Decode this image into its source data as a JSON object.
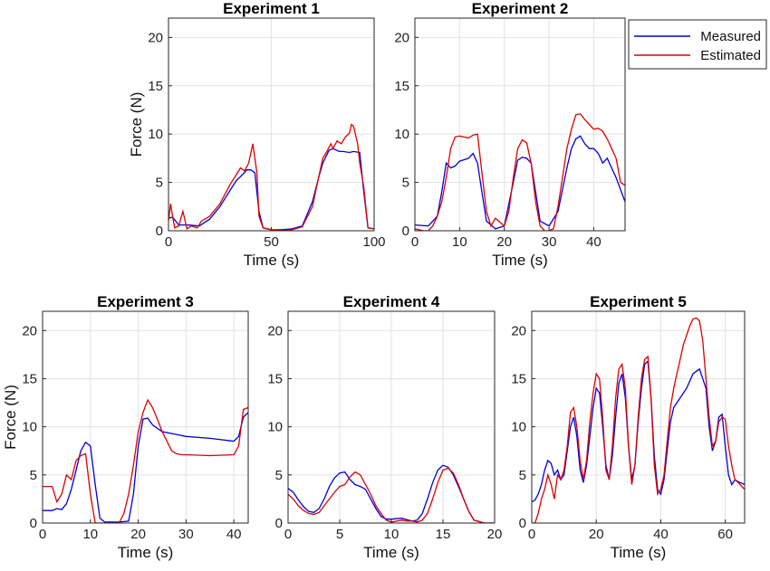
{
  "chart_data": [
    {
      "type": "line",
      "title": "Experiment 1",
      "xlabel": "Time (s)",
      "ylabel": "Force (N)",
      "xlim": [
        0,
        100
      ],
      "ylim": [
        0,
        22
      ],
      "xticks": [
        0,
        50,
        100
      ],
      "yticks": [
        0,
        5,
        10,
        15,
        20
      ],
      "grid": true,
      "series": [
        {
          "name": "Measured",
          "color": "#0000dd",
          "x": [
            0,
            2,
            5,
            10,
            15,
            20,
            25,
            30,
            33,
            36,
            38,
            40,
            42,
            44,
            46,
            50,
            55,
            60,
            65,
            70,
            73,
            75,
            78,
            80,
            83,
            85,
            88,
            90,
            93,
            95,
            97,
            100
          ],
          "y": [
            1.3,
            1.4,
            0.6,
            0.6,
            0.5,
            1.2,
            2.5,
            4.2,
            5.2,
            5.8,
            6.3,
            6.3,
            6.0,
            2.0,
            0.3,
            0.1,
            0.1,
            0.2,
            0.5,
            3.0,
            5.5,
            7.0,
            8.3,
            8.5,
            8.2,
            8.2,
            8.1,
            8.2,
            8.1,
            4.0,
            0.3,
            0.2
          ]
        },
        {
          "name": "Estimated",
          "color": "#dd0000",
          "x": [
            0,
            1,
            2,
            3,
            5,
            7,
            9,
            11,
            14,
            16,
            20,
            25,
            30,
            33,
            35,
            37,
            39,
            40,
            41,
            43,
            44,
            46,
            50,
            55,
            60,
            65,
            70,
            73,
            75,
            77,
            79,
            80,
            82,
            84,
            86,
            88,
            89,
            90,
            92,
            93,
            95,
            97,
            100
          ],
          "y": [
            1.0,
            2.8,
            1.5,
            0.3,
            0.5,
            2.0,
            0.2,
            0.5,
            0.3,
            1.0,
            1.5,
            2.8,
            4.8,
            5.8,
            6.5,
            6.2,
            7.0,
            8.0,
            9.0,
            6.0,
            1.5,
            0.3,
            0.1,
            0.0,
            0.1,
            0.4,
            2.5,
            5.5,
            7.5,
            8.2,
            9.0,
            8.5,
            9.3,
            9.0,
            9.7,
            10.1,
            11.0,
            10.8,
            9.0,
            7.0,
            4.5,
            0.3,
            0.2
          ]
        }
      ]
    },
    {
      "type": "line",
      "title": "Experiment 2",
      "xlabel": "Time (s)",
      "ylabel": "",
      "xlim": [
        0,
        47
      ],
      "ylim": [
        0,
        22
      ],
      "xticks": [
        0,
        10,
        20,
        30,
        40
      ],
      "yticks": [
        0,
        5,
        10,
        15,
        20
      ],
      "grid": true,
      "series": [
        {
          "name": "Measured",
          "color": "#0000dd",
          "x": [
            0,
            3,
            5,
            6,
            7,
            8,
            9,
            10,
            12,
            13,
            14,
            15,
            16,
            18,
            20,
            22,
            23,
            24,
            25,
            26,
            27,
            28,
            30,
            32,
            34,
            35,
            36,
            37,
            38,
            39,
            40,
            41,
            42,
            43,
            45,
            47
          ],
          "y": [
            0.6,
            0.5,
            1.5,
            4.0,
            7.0,
            6.5,
            6.7,
            7.2,
            7.5,
            8.0,
            7.0,
            4.0,
            1.0,
            0.2,
            0.5,
            5.0,
            7.3,
            7.6,
            7.5,
            7.0,
            4.0,
            1.0,
            0.5,
            2.0,
            6.5,
            8.5,
            9.5,
            9.8,
            9.0,
            8.5,
            8.5,
            8.0,
            7.0,
            7.5,
            5.5,
            3.0
          ]
        },
        {
          "name": "Estimated",
          "color": "#dd0000",
          "x": [
            0,
            2,
            3,
            4,
            5,
            6,
            7,
            8,
            9,
            10,
            11,
            12,
            13,
            14,
            15,
            16,
            17,
            18,
            20,
            21,
            22,
            23,
            24,
            25,
            26,
            27,
            28,
            29,
            30,
            31,
            32,
            33,
            34,
            35,
            36,
            37,
            38,
            39,
            40,
            41,
            42,
            43,
            44,
            45,
            46,
            47
          ],
          "y": [
            0.2,
            0.0,
            0.0,
            0.5,
            1.5,
            3.0,
            5.5,
            8.5,
            9.7,
            9.8,
            9.7,
            9.6,
            9.9,
            10.0,
            6.0,
            2.0,
            0.5,
            1.3,
            0.5,
            2.0,
            5.5,
            8.5,
            9.4,
            9.1,
            7.0,
            3.0,
            0.5,
            0.0,
            0.0,
            0.2,
            2.5,
            5.5,
            8.5,
            10.5,
            12.0,
            12.1,
            11.5,
            11.0,
            10.5,
            10.6,
            10.3,
            9.5,
            8.5,
            7.5,
            5.0,
            4.7
          ]
        }
      ]
    },
    {
      "type": "line",
      "title": "Experiment 3",
      "xlabel": "Time (s)",
      "ylabel": "Force (N)",
      "xlim": [
        0,
        43
      ],
      "ylim": [
        0,
        22
      ],
      "xticks": [
        0,
        10,
        20,
        30,
        40
      ],
      "yticks": [
        0,
        5,
        10,
        15,
        20
      ],
      "grid": true,
      "series": [
        {
          "name": "Measured",
          "color": "#0000dd",
          "x": [
            0,
            2,
            3,
            4,
            5,
            6,
            7,
            8,
            9,
            10,
            11,
            12,
            13,
            14,
            16,
            18,
            19,
            20,
            21,
            22,
            23,
            25,
            28,
            30,
            35,
            40,
            41,
            42,
            43
          ],
          "y": [
            1.3,
            1.3,
            1.5,
            1.4,
            2.0,
            3.5,
            5.5,
            7.5,
            8.4,
            8.0,
            4.0,
            0.5,
            0.1,
            0.1,
            0.1,
            0.2,
            3.0,
            8.0,
            10.8,
            10.9,
            10.2,
            9.5,
            9.2,
            9.0,
            8.8,
            8.5,
            9.0,
            11.0,
            11.5
          ]
        },
        {
          "name": "Estimated",
          "color": "#dd0000",
          "x": [
            0,
            1,
            2,
            3,
            4,
            5,
            6,
            7,
            8,
            9,
            10,
            11,
            12,
            13,
            16,
            17,
            18,
            19,
            20,
            21,
            22,
            23,
            24,
            25,
            26,
            27,
            28,
            29,
            30,
            35,
            40,
            41,
            42,
            43
          ],
          "y": [
            3.8,
            3.8,
            3.8,
            2.2,
            3.0,
            5.0,
            4.5,
            6.5,
            7.0,
            7.2,
            3.0,
            0.0,
            0.0,
            0.0,
            0.0,
            1.0,
            3.0,
            6.0,
            9.5,
            11.5,
            12.8,
            12.0,
            10.8,
            9.5,
            8.5,
            7.5,
            7.2,
            7.1,
            7.1,
            7.0,
            7.1,
            8.0,
            11.8,
            12.0
          ]
        }
      ]
    },
    {
      "type": "line",
      "title": "Experiment 4",
      "xlabel": "Time (s)",
      "ylabel": "",
      "xlim": [
        0,
        20
      ],
      "ylim": [
        0,
        22
      ],
      "xticks": [
        0,
        5,
        10,
        15,
        20
      ],
      "yticks": [
        0,
        5,
        10,
        15,
        20
      ],
      "grid": true,
      "series": [
        {
          "name": "Measured",
          "color": "#0000dd",
          "x": [
            0,
            0.5,
            1,
            1.5,
            2,
            2.5,
            3,
            3.5,
            4,
            4.5,
            5,
            5.5,
            6,
            6.5,
            7,
            7.5,
            8,
            8.5,
            9,
            9.5,
            10,
            11,
            12,
            12.5,
            13,
            13.5,
            14,
            14.5,
            15,
            15.5,
            16,
            16.5,
            17,
            17.5,
            18,
            19,
            20
          ],
          "y": [
            3.6,
            3.2,
            2.4,
            1.7,
            1.2,
            1.1,
            1.5,
            2.5,
            3.8,
            4.7,
            5.2,
            5.3,
            4.5,
            4.0,
            3.8,
            3.5,
            2.5,
            1.5,
            0.7,
            0.4,
            0.4,
            0.5,
            0.2,
            0.3,
            1.0,
            2.5,
            4.2,
            5.5,
            6.0,
            5.8,
            5.0,
            3.8,
            2.5,
            1.2,
            0.3,
            0.0,
            0.0
          ]
        },
        {
          "name": "Estimated",
          "color": "#dd0000",
          "x": [
            0,
            0.5,
            1,
            1.5,
            2,
            2.5,
            3,
            3.5,
            4,
            4.5,
            5,
            5.5,
            6,
            6.5,
            7,
            7.5,
            8,
            8.5,
            9,
            9.5,
            10,
            10.5,
            11,
            11.5,
            12,
            12.5,
            13,
            13.5,
            14,
            14.5,
            15,
            15.5,
            16,
            16.5,
            17,
            17.5,
            18,
            19,
            20
          ],
          "y": [
            3.0,
            2.5,
            1.8,
            1.3,
            1.0,
            0.9,
            1.1,
            1.8,
            2.5,
            3.2,
            3.8,
            4.0,
            4.8,
            5.3,
            5.0,
            4.0,
            3.0,
            1.8,
            1.0,
            0.3,
            0.1,
            0.2,
            0.3,
            0.2,
            0.2,
            0.1,
            0.3,
            1.0,
            2.5,
            4.2,
            5.5,
            5.7,
            5.2,
            4.0,
            2.5,
            1.2,
            0.3,
            0.0,
            0.0
          ]
        }
      ]
    },
    {
      "type": "line",
      "title": "Experiment 5",
      "xlabel": "Time (s)",
      "ylabel": "",
      "xlim": [
        0,
        66
      ],
      "ylim": [
        0,
        22
      ],
      "xticks": [
        0,
        20,
        40,
        60
      ],
      "yticks": [
        0,
        5,
        10,
        15,
        20
      ],
      "grid": true,
      "series": [
        {
          "name": "Measured",
          "color": "#0000dd",
          "x": [
            0,
            1,
            2,
            3,
            4,
            5,
            6,
            7,
            8,
            9,
            10,
            11,
            12,
            13,
            14,
            15,
            16,
            17,
            18,
            19,
            20,
            21,
            22,
            23,
            24,
            25,
            26,
            27,
            28,
            29,
            30,
            31,
            32,
            33,
            34,
            35,
            36,
            37,
            38,
            39,
            40,
            41,
            42,
            43,
            44,
            45,
            46,
            48,
            50,
            52,
            54,
            55,
            56,
            57,
            58,
            59,
            60,
            61,
            62,
            63,
            64,
            66
          ],
          "y": [
            2.2,
            2.4,
            3.0,
            4.0,
            5.5,
            6.5,
            6.2,
            5.0,
            5.5,
            4.5,
            5.0,
            7.5,
            10.0,
            11.0,
            9.0,
            5.5,
            4.2,
            6.0,
            9.0,
            12.0,
            14.0,
            13.5,
            10.0,
            6.0,
            4.5,
            7.0,
            11.0,
            14.5,
            15.5,
            13.0,
            8.0,
            4.5,
            6.0,
            10.5,
            14.0,
            16.5,
            16.8,
            13.0,
            7.0,
            3.5,
            3.0,
            4.5,
            7.5,
            10.5,
            12.0,
            12.5,
            13.0,
            14.0,
            15.5,
            16.0,
            14.0,
            10.0,
            7.5,
            8.5,
            11.0,
            11.3,
            8.0,
            5.0,
            4.0,
            4.5,
            4.3,
            4.0
          ]
        },
        {
          "name": "Estimated",
          "color": "#dd0000",
          "x": [
            0,
            1,
            2,
            3,
            4,
            5,
            6,
            7,
            8,
            9,
            10,
            11,
            12,
            13,
            14,
            15,
            16,
            17,
            18,
            19,
            20,
            21,
            22,
            23,
            24,
            25,
            26,
            27,
            28,
            29,
            30,
            31,
            32,
            33,
            34,
            35,
            36,
            37,
            38,
            39,
            40,
            41,
            42,
            43,
            44,
            45,
            46,
            47,
            48,
            49,
            50,
            51,
            52,
            53,
            54,
            55,
            56,
            57,
            58,
            59,
            60,
            61,
            62,
            63,
            64,
            66
          ],
          "y": [
            0.0,
            0.0,
            1.0,
            2.5,
            3.5,
            5.0,
            4.0,
            2.5,
            5.0,
            4.5,
            5.5,
            8.0,
            11.5,
            12.0,
            10.0,
            6.5,
            4.5,
            6.5,
            10.5,
            13.5,
            15.5,
            15.0,
            11.0,
            5.5,
            4.5,
            8.0,
            13.0,
            16.0,
            16.5,
            14.0,
            8.0,
            4.0,
            6.0,
            11.0,
            15.0,
            17.0,
            17.3,
            13.0,
            6.0,
            3.0,
            3.5,
            5.0,
            8.5,
            12.0,
            14.0,
            15.5,
            17.0,
            18.5,
            19.5,
            20.5,
            21.2,
            21.3,
            21.0,
            19.0,
            15.0,
            11.0,
            8.0,
            8.5,
            10.5,
            11.0,
            10.8,
            8.0,
            6.0,
            4.5,
            4.2,
            3.5
          ]
        }
      ]
    }
  ],
  "legend": {
    "placement": "top-right",
    "entries": [
      {
        "label": "Measured",
        "color": "#0000dd"
      },
      {
        "label": "Estimated",
        "color": "#dd0000"
      }
    ]
  }
}
